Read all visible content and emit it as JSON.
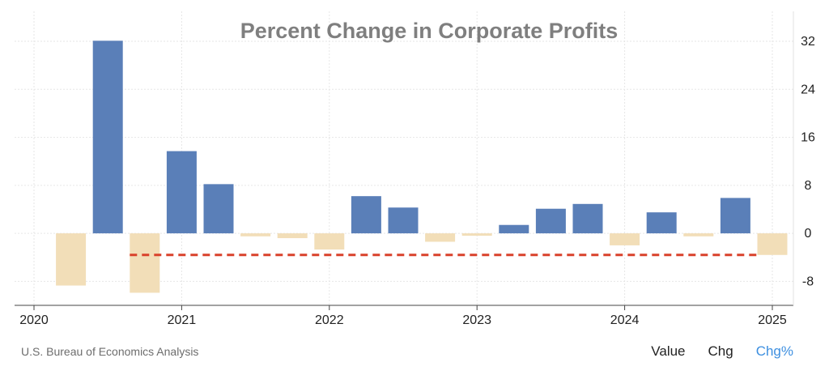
{
  "chart_data": {
    "type": "bar",
    "title": "Percent Change in Corporate Profits",
    "categories": [
      "2020 Q2",
      "2020 Q3",
      "2020 Q4",
      "2021 Q1",
      "2021 Q2",
      "2021 Q3",
      "2021 Q4",
      "2022 Q1",
      "2022 Q2",
      "2022 Q3",
      "2022 Q4",
      "2023 Q1",
      "2023 Q2",
      "2023 Q3",
      "2023 Q4",
      "2024 Q1",
      "2024 Q2",
      "2024 Q3",
      "2024 Q4",
      "2025 Q1"
    ],
    "values": [
      -8.7,
      32.1,
      -9.9,
      13.7,
      8.2,
      -0.5,
      -0.8,
      -2.7,
      6.2,
      4.3,
      -1.4,
      -0.4,
      1.4,
      4.1,
      4.9,
      -2.0,
      3.5,
      -0.5,
      5.9,
      -3.6
    ],
    "positive_color": "#5a7fb8",
    "negative_color": "#f2deb8",
    "reference_line": {
      "value": -3.6,
      "color": "#d9412b",
      "style": "dashed",
      "start_category": "2020 Q4"
    },
    "x_ticks": [
      "2020",
      "2021",
      "2022",
      "2023",
      "2024",
      "2025"
    ],
    "y_ticks": [
      32,
      24,
      16,
      8,
      0,
      -8
    ],
    "ylim": [
      -12,
      37
    ],
    "y_axis_position": "right",
    "grid": true,
    "xlabel": "",
    "ylabel": ""
  },
  "footer": {
    "source": "U.S. Bureau of Economics Analysis",
    "tabs": [
      {
        "label": "Value",
        "active": false
      },
      {
        "label": "Chg",
        "active": false
      },
      {
        "label": "Chg%",
        "active": true
      }
    ]
  }
}
